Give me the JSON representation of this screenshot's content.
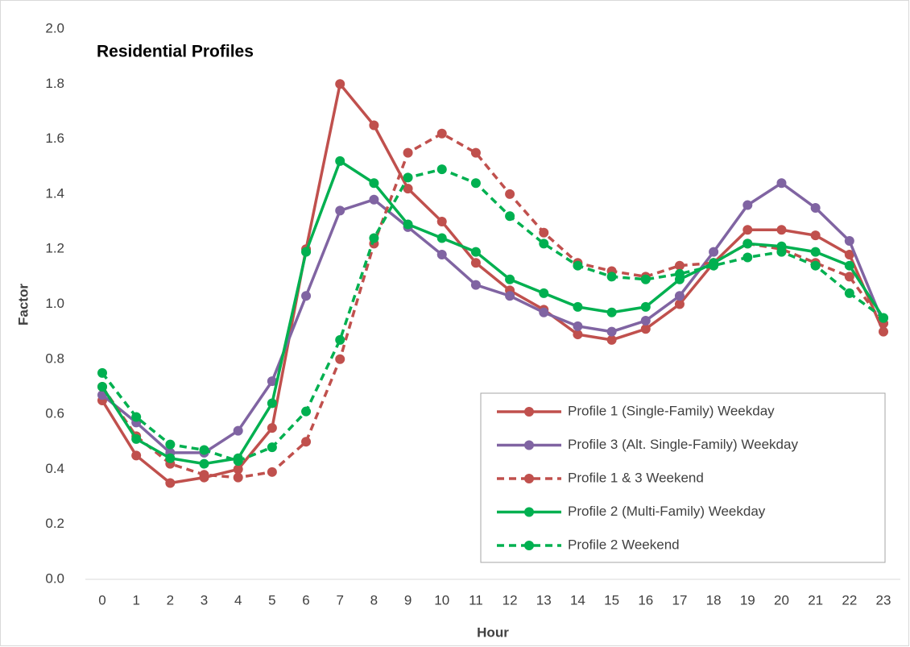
{
  "chart_data": {
    "type": "line",
    "title": "Residential Profiles",
    "x_label": "Hour",
    "y_label": "Factor",
    "categories": [
      "0",
      "1",
      "2",
      "3",
      "4",
      "5",
      "6",
      "7",
      "8",
      "9",
      "10",
      "11",
      "12",
      "13",
      "14",
      "15",
      "16",
      "17",
      "18",
      "19",
      "20",
      "21",
      "22",
      "23"
    ],
    "ylim": [
      0,
      2
    ],
    "yticks": [
      {
        "value": 0,
        "label": "0.0"
      },
      {
        "value": 0.2,
        "label": "0.2"
      },
      {
        "value": 0.4,
        "label": "0.4"
      },
      {
        "value": 0.6,
        "label": "0.6"
      },
      {
        "value": 0.8,
        "label": "0.8"
      },
      {
        "value": 1,
        "label": "1.0"
      },
      {
        "value": 1.2,
        "label": "1.2"
      },
      {
        "value": 1.4,
        "label": "1.4"
      },
      {
        "value": 1.6,
        "label": "1.6"
      },
      {
        "value": 1.8,
        "label": "1.8"
      },
      {
        "value": 2,
        "label": "2.0"
      }
    ],
    "grid": false,
    "legend": "lower right",
    "series": [
      {
        "name": "Profile 1 (Single-Family) Weekday",
        "color": "#c0504d",
        "style": "solid",
        "values": [
          0.65,
          0.45,
          0.35,
          0.37,
          0.4,
          0.55,
          1.2,
          1.8,
          1.65,
          1.42,
          1.3,
          1.15,
          1.05,
          0.98,
          0.89,
          0.87,
          0.91,
          1.0,
          1.15,
          1.27,
          1.27,
          1.25,
          1.18,
          0.9
        ]
      },
      {
        "name": "Profile 3 (Alt. Single-Family) Weekday",
        "color": "#8064a2",
        "style": "solid",
        "values": [
          0.67,
          0.57,
          0.46,
          0.46,
          0.54,
          0.72,
          1.03,
          1.34,
          1.38,
          1.28,
          1.18,
          1.07,
          1.03,
          0.97,
          0.92,
          0.9,
          0.94,
          1.03,
          1.19,
          1.36,
          1.44,
          1.35,
          1.23,
          0.93
        ]
      },
      {
        "name": "Profile 1 & 3 Weekend",
        "color": "#c0504d",
        "style": "dashed",
        "values": [
          0.7,
          0.52,
          0.42,
          0.38,
          0.37,
          0.39,
          0.5,
          0.8,
          1.22,
          1.55,
          1.62,
          1.55,
          1.4,
          1.26,
          1.15,
          1.12,
          1.1,
          1.14,
          1.15,
          1.22,
          1.2,
          1.15,
          1.1,
          0.93
        ]
      },
      {
        "name": "Profile 2 (Multi-Family) Weekday",
        "color": "#00b050",
        "style": "solid",
        "values": [
          0.7,
          0.51,
          0.44,
          0.42,
          0.44,
          0.64,
          1.19,
          1.52,
          1.44,
          1.29,
          1.24,
          1.19,
          1.09,
          1.04,
          0.99,
          0.97,
          0.99,
          1.09,
          1.15,
          1.22,
          1.21,
          1.19,
          1.14,
          0.95
        ]
      },
      {
        "name": "Profile 2 Weekend",
        "color": "#00b050",
        "style": "dashed",
        "values": [
          0.75,
          0.59,
          0.49,
          0.47,
          0.43,
          0.48,
          0.61,
          0.87,
          1.24,
          1.46,
          1.49,
          1.44,
          1.32,
          1.22,
          1.14,
          1.1,
          1.09,
          1.11,
          1.14,
          1.17,
          1.19,
          1.14,
          1.04,
          0.95
        ]
      }
    ]
  }
}
